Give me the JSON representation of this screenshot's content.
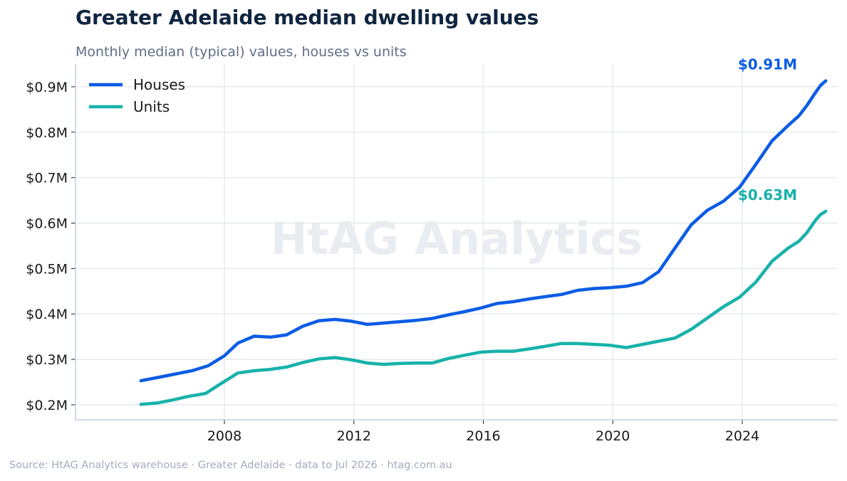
{
  "title": "Greater Adelaide median dwelling values",
  "subtitle": "Monthly median (typical) values, houses vs units",
  "watermark": "HtAG Analytics",
  "source": "Source: HtAG Analytics warehouse  ·  Greater Adelaide  ·  data to Jul 2026  ·  htag.com.au",
  "colors": {
    "houses": "#0b5ce5",
    "units": "#17b2aa",
    "grid": "#e6eaef",
    "axis": "#c5cfdb"
  },
  "chart_data": {
    "type": "line",
    "xlim": [
      2003.4,
      2026.95
    ],
    "ylim": [
      0.167,
      0.95
    ],
    "y_ticks": [
      0.2,
      0.3,
      0.4,
      0.5,
      0.6,
      0.7,
      0.8,
      0.9
    ],
    "y_tick_labels": [
      "$0.2M",
      "$0.3M",
      "$0.4M",
      "$0.5M",
      "$0.6M",
      "$0.7M",
      "$0.8M",
      "$0.9M"
    ],
    "x_ticks": [
      2008,
      2012,
      2016,
      2020,
      2024
    ],
    "x_tick_labels": [
      "2008",
      "2012",
      "2016",
      "2020",
      "2024"
    ],
    "grid": true,
    "legend_position": "top-left",
    "series": [
      {
        "name": "Houses",
        "color": "#0b5ce5",
        "end_label": "$0.91M",
        "points": [
          [
            2005.42,
            0.253
          ],
          [
            2006.0,
            0.261
          ],
          [
            2006.5,
            0.268
          ],
          [
            2007.0,
            0.275
          ],
          [
            2007.5,
            0.286
          ],
          [
            2008.0,
            0.308
          ],
          [
            2008.42,
            0.336
          ],
          [
            2008.92,
            0.351
          ],
          [
            2009.42,
            0.349
          ],
          [
            2009.92,
            0.354
          ],
          [
            2010.42,
            0.373
          ],
          [
            2010.92,
            0.385
          ],
          [
            2011.42,
            0.388
          ],
          [
            2011.92,
            0.384
          ],
          [
            2012.42,
            0.377
          ],
          [
            2012.92,
            0.38
          ],
          [
            2013.42,
            0.383
          ],
          [
            2013.92,
            0.386
          ],
          [
            2014.42,
            0.39
          ],
          [
            2014.92,
            0.398
          ],
          [
            2015.42,
            0.405
          ],
          [
            2015.92,
            0.413
          ],
          [
            2016.42,
            0.423
          ],
          [
            2016.92,
            0.427
          ],
          [
            2017.42,
            0.433
          ],
          [
            2017.92,
            0.438
          ],
          [
            2018.42,
            0.443
          ],
          [
            2018.92,
            0.452
          ],
          [
            2019.42,
            0.456
          ],
          [
            2019.92,
            0.458
          ],
          [
            2020.42,
            0.461
          ],
          [
            2020.92,
            0.469
          ],
          [
            2021.42,
            0.493
          ],
          [
            2021.92,
            0.545
          ],
          [
            2022.42,
            0.596
          ],
          [
            2022.92,
            0.628
          ],
          [
            2023.42,
            0.648
          ],
          [
            2023.92,
            0.679
          ],
          [
            2024.42,
            0.729
          ],
          [
            2024.92,
            0.781
          ],
          [
            2025.42,
            0.815
          ],
          [
            2025.75,
            0.836
          ],
          [
            2026.0,
            0.859
          ],
          [
            2026.25,
            0.886
          ],
          [
            2026.42,
            0.903
          ],
          [
            2026.58,
            0.913
          ]
        ]
      },
      {
        "name": "Units",
        "color": "#17b2aa",
        "end_label": "$0.63M",
        "points": [
          [
            2005.42,
            0.201
          ],
          [
            2005.92,
            0.204
          ],
          [
            2006.42,
            0.211
          ],
          [
            2006.92,
            0.219
          ],
          [
            2007.42,
            0.225
          ],
          [
            2007.92,
            0.248
          ],
          [
            2008.42,
            0.27
          ],
          [
            2008.92,
            0.275
          ],
          [
            2009.42,
            0.278
          ],
          [
            2009.92,
            0.283
          ],
          [
            2010.42,
            0.293
          ],
          [
            2010.92,
            0.301
          ],
          [
            2011.42,
            0.304
          ],
          [
            2011.92,
            0.299
          ],
          [
            2012.42,
            0.292
          ],
          [
            2012.92,
            0.289
          ],
          [
            2013.42,
            0.291
          ],
          [
            2013.92,
            0.292
          ],
          [
            2014.42,
            0.292
          ],
          [
            2014.92,
            0.302
          ],
          [
            2015.42,
            0.309
          ],
          [
            2015.92,
            0.316
          ],
          [
            2016.42,
            0.318
          ],
          [
            2016.92,
            0.318
          ],
          [
            2017.42,
            0.323
          ],
          [
            2017.92,
            0.329
          ],
          [
            2018.42,
            0.335
          ],
          [
            2018.92,
            0.335
          ],
          [
            2019.42,
            0.333
          ],
          [
            2019.92,
            0.331
          ],
          [
            2020.42,
            0.326
          ],
          [
            2020.92,
            0.333
          ],
          [
            2021.42,
            0.34
          ],
          [
            2021.92,
            0.347
          ],
          [
            2022.42,
            0.366
          ],
          [
            2022.92,
            0.391
          ],
          [
            2023.42,
            0.416
          ],
          [
            2023.92,
            0.437
          ],
          [
            2024.42,
            0.47
          ],
          [
            2024.92,
            0.516
          ],
          [
            2025.42,
            0.545
          ],
          [
            2025.75,
            0.56
          ],
          [
            2026.0,
            0.579
          ],
          [
            2026.25,
            0.605
          ],
          [
            2026.42,
            0.619
          ],
          [
            2026.58,
            0.626
          ]
        ]
      }
    ]
  }
}
